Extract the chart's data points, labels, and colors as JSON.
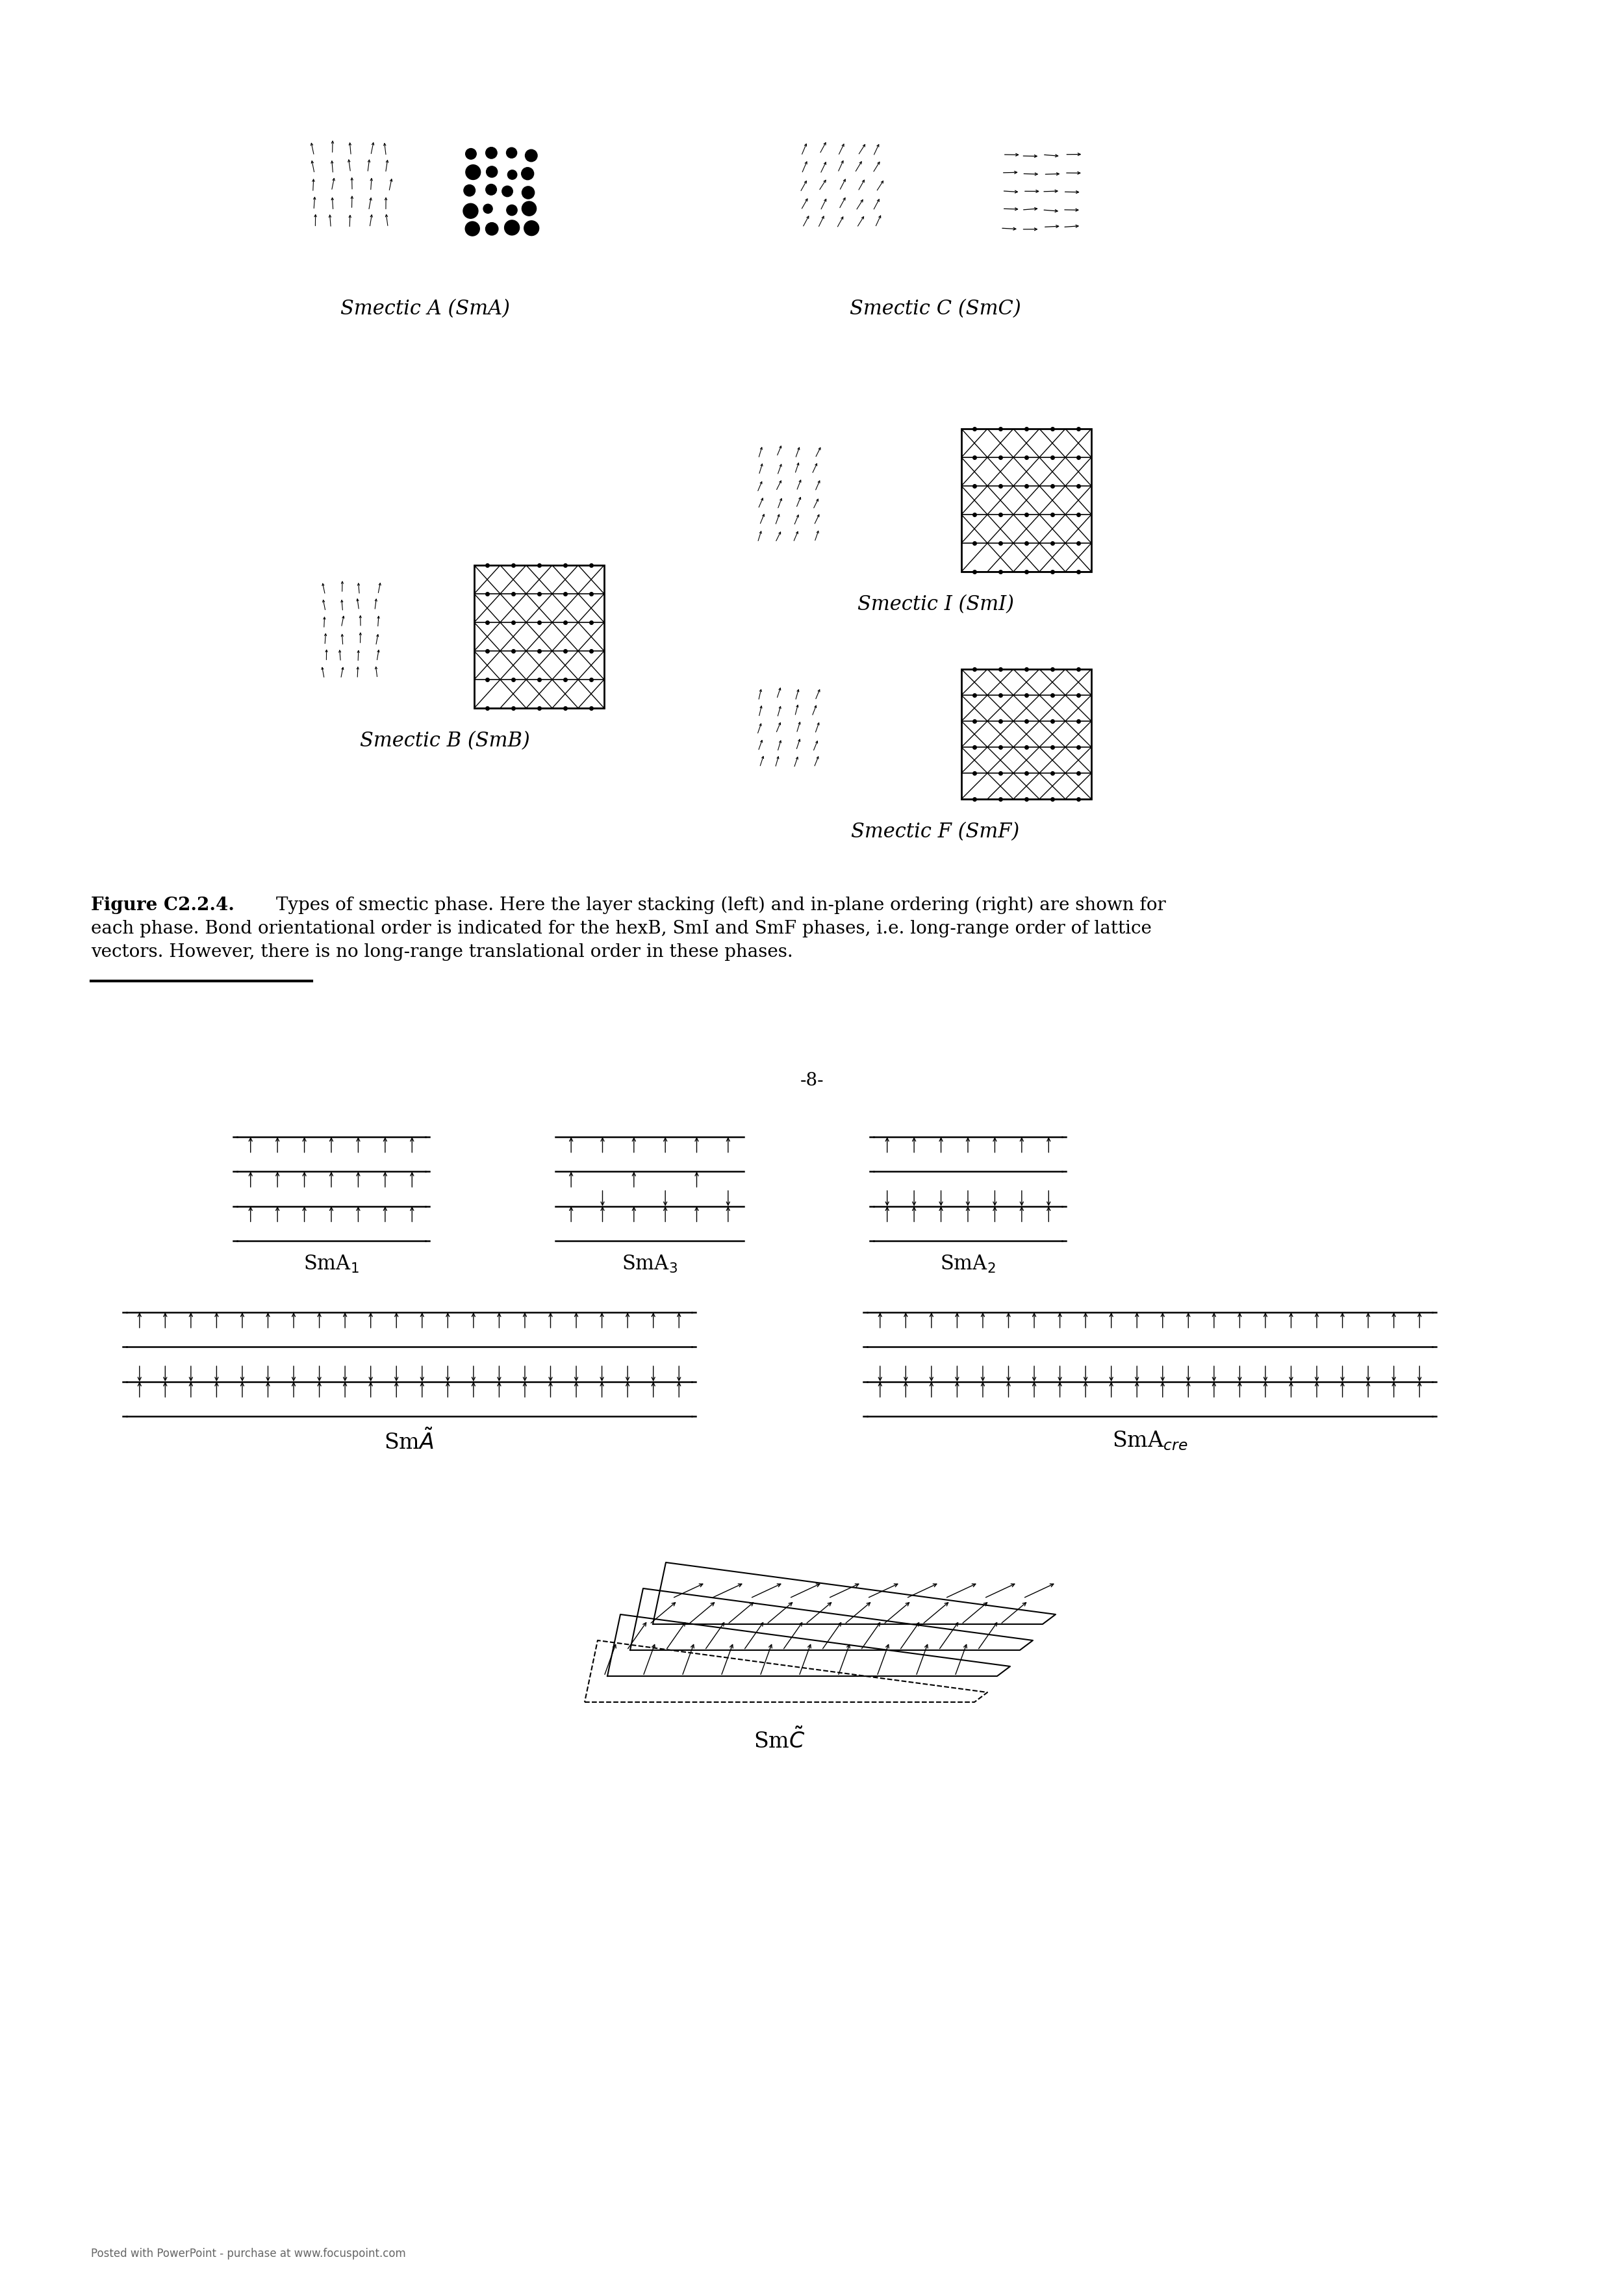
{
  "figure_width": 24.8,
  "figure_height": 35.08,
  "bg_color": "#ffffff",
  "caption_bold": "Figure C2.2.4.",
  "caption_text": "Types of smectic phase. Here the layer stacking (left) and in-plane ordering (right) are shown for each phase. Bond orientational order is indicated for the hexB, SmI and SmF phases, i.e. long-range order of lattice vectors. However, there is no long-range translational order in these phases.",
  "page_number": "-8-"
}
